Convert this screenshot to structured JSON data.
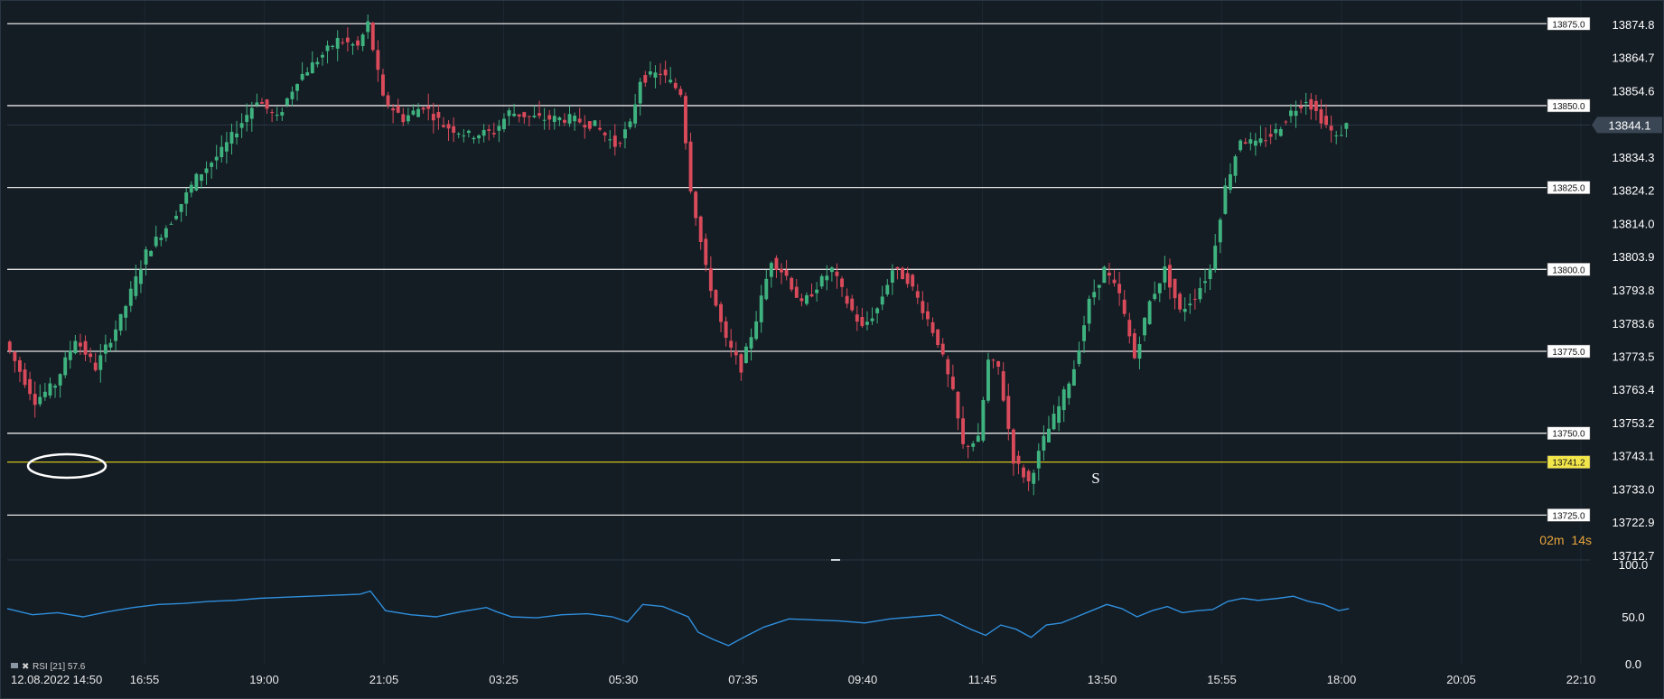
{
  "chart_data": {
    "type": "candlestick",
    "price_axis": {
      "ylim": [
        13712.7,
        13874.8
      ],
      "tick_labels": [
        "13874.8",
        "13864.7",
        "13854.6",
        "13844.1",
        "13834.3",
        "13824.2",
        "13814.0",
        "13803.9",
        "13793.8",
        "13783.6",
        "13773.5",
        "13763.4",
        "13753.2",
        "13743.1",
        "13733.0",
        "13722.9",
        "13712.7"
      ],
      "current_price": "13844.1"
    },
    "x_axis": {
      "tick_labels": [
        "12.08.2022 14:50",
        "16:55",
        "19:00",
        "21:05",
        "03:25",
        "05:30",
        "07:35",
        "09:40",
        "11:45",
        "13:50",
        "15:55",
        "18:00",
        "20:05",
        "22:10"
      ]
    },
    "levels": [
      {
        "value": 13875.0,
        "label": "13875.0",
        "color": "#e6e6e6"
      },
      {
        "value": 13850.0,
        "label": "13850.0",
        "color": "#e6e6e6"
      },
      {
        "value": 13825.0,
        "label": "13825.0",
        "color": "#e6e6e6"
      },
      {
        "value": 13800.0,
        "label": "13800.0",
        "color": "#e6e6e6"
      },
      {
        "value": 13775.0,
        "label": "13775.0",
        "color": "#e6e6e6"
      },
      {
        "value": 13750.0,
        "label": "13750.0",
        "color": "#e6e6e6"
      },
      {
        "value": 13741.2,
        "label": "13741.2",
        "color": "#d4c21a"
      },
      {
        "value": 13725.0,
        "label": "13725.0",
        "color": "#e6e6e6"
      }
    ],
    "annotations": [
      {
        "text": "S"
      }
    ],
    "timer": {
      "minutes": "02",
      "m": "m",
      "seconds": "14",
      "s": "s"
    },
    "price_path": [
      [
        0,
        13778
      ],
      [
        6,
        13760
      ],
      [
        10,
        13765
      ],
      [
        14,
        13779
      ],
      [
        18,
        13770
      ],
      [
        23,
        13785
      ],
      [
        28,
        13805
      ],
      [
        33,
        13815
      ],
      [
        38,
        13828
      ],
      [
        43,
        13836
      ],
      [
        47,
        13845
      ],
      [
        50,
        13852
      ],
      [
        54,
        13846
      ],
      [
        58,
        13858
      ],
      [
        62,
        13864
      ],
      [
        66,
        13870
      ],
      [
        70,
        13868
      ],
      [
        72,
        13875
      ],
      [
        75,
        13852
      ],
      [
        79,
        13846
      ],
      [
        83,
        13850
      ],
      [
        87,
        13844
      ],
      [
        92,
        13841
      ],
      [
        97,
        13842
      ],
      [
        100,
        13848
      ],
      [
        106,
        13846
      ],
      [
        112,
        13846
      ],
      [
        117,
        13844
      ],
      [
        121,
        13838
      ],
      [
        124,
        13844
      ],
      [
        126,
        13858
      ],
      [
        130,
        13860
      ],
      [
        134,
        13854
      ],
      [
        136,
        13825
      ],
      [
        139,
        13800
      ],
      [
        143,
        13778
      ],
      [
        146,
        13770
      ],
      [
        149,
        13785
      ],
      [
        152,
        13803
      ],
      [
        155,
        13798
      ],
      [
        158,
        13789
      ],
      [
        161,
        13795
      ],
      [
        164,
        13800
      ],
      [
        167,
        13790
      ],
      [
        170,
        13782
      ],
      [
        173,
        13788
      ],
      [
        176,
        13800
      ],
      [
        179,
        13797
      ],
      [
        182,
        13788
      ],
      [
        185,
        13778
      ],
      [
        188,
        13762
      ],
      [
        190,
        13746
      ],
      [
        193,
        13748
      ],
      [
        195,
        13772
      ],
      [
        197,
        13770
      ],
      [
        200,
        13742
      ],
      [
        203,
        13735
      ],
      [
        206,
        13748
      ],
      [
        209,
        13758
      ],
      [
        212,
        13770
      ],
      [
        215,
        13790
      ],
      [
        218,
        13800
      ],
      [
        221,
        13792
      ],
      [
        224,
        13773
      ],
      [
        227,
        13790
      ],
      [
        230,
        13800
      ],
      [
        233,
        13787
      ],
      [
        236,
        13792
      ],
      [
        239,
        13800
      ],
      [
        242,
        13825
      ],
      [
        245,
        13840
      ],
      [
        248,
        13838
      ],
      [
        252,
        13842
      ],
      [
        255,
        13848
      ],
      [
        258,
        13852
      ],
      [
        261,
        13846
      ],
      [
        264,
        13840
      ],
      [
        266,
        13844
      ]
    ],
    "rsi": {
      "label": "RSI [21] 57.6",
      "ylim": [
        0,
        100
      ],
      "tick_labels": [
        "100.0",
        "50.0",
        "0.0"
      ],
      "values": [
        [
          0,
          58
        ],
        [
          5,
          52
        ],
        [
          10,
          54
        ],
        [
          15,
          50
        ],
        [
          20,
          55
        ],
        [
          25,
          59
        ],
        [
          30,
          62
        ],
        [
          35,
          63
        ],
        [
          40,
          65
        ],
        [
          45,
          66
        ],
        [
          50,
          68
        ],
        [
          55,
          69
        ],
        [
          60,
          70
        ],
        [
          65,
          71
        ],
        [
          70,
          72
        ],
        [
          72,
          75
        ],
        [
          75,
          56
        ],
        [
          80,
          52
        ],
        [
          85,
          50
        ],
        [
          90,
          55
        ],
        [
          95,
          59
        ],
        [
          97,
          55
        ],
        [
          100,
          50
        ],
        [
          105,
          49
        ],
        [
          110,
          52
        ],
        [
          115,
          53
        ],
        [
          120,
          50
        ],
        [
          123,
          45
        ],
        [
          126,
          62
        ],
        [
          130,
          60
        ],
        [
          135,
          50
        ],
        [
          137,
          35
        ],
        [
          140,
          28
        ],
        [
          143,
          22
        ],
        [
          146,
          30
        ],
        [
          150,
          40
        ],
        [
          155,
          48
        ],
        [
          160,
          47
        ],
        [
          165,
          46
        ],
        [
          170,
          44
        ],
        [
          175,
          48
        ],
        [
          180,
          50
        ],
        [
          185,
          52
        ],
        [
          188,
          45
        ],
        [
          191,
          38
        ],
        [
          194,
          32
        ],
        [
          197,
          42
        ],
        [
          200,
          38
        ],
        [
          203,
          30
        ],
        [
          206,
          42
        ],
        [
          209,
          44
        ],
        [
          212,
          50
        ],
        [
          215,
          56
        ],
        [
          218,
          62
        ],
        [
          221,
          58
        ],
        [
          224,
          50
        ],
        [
          227,
          56
        ],
        [
          230,
          60
        ],
        [
          233,
          54
        ],
        [
          236,
          56
        ],
        [
          239,
          57
        ],
        [
          242,
          65
        ],
        [
          245,
          68
        ],
        [
          248,
          66
        ],
        [
          252,
          68
        ],
        [
          255,
          70
        ],
        [
          258,
          65
        ],
        [
          261,
          62
        ],
        [
          264,
          56
        ],
        [
          266,
          58
        ]
      ]
    }
  },
  "colors": {
    "background": "#141c24",
    "up": "#3fb37f",
    "down": "#d94a5a",
    "rsi_line": "#2f8fdc",
    "level_line": "#e6e6e6",
    "highlight_level": "#d4c21a",
    "timer_accent": "#e8a63c",
    "marker_circle": "#ffffff"
  }
}
